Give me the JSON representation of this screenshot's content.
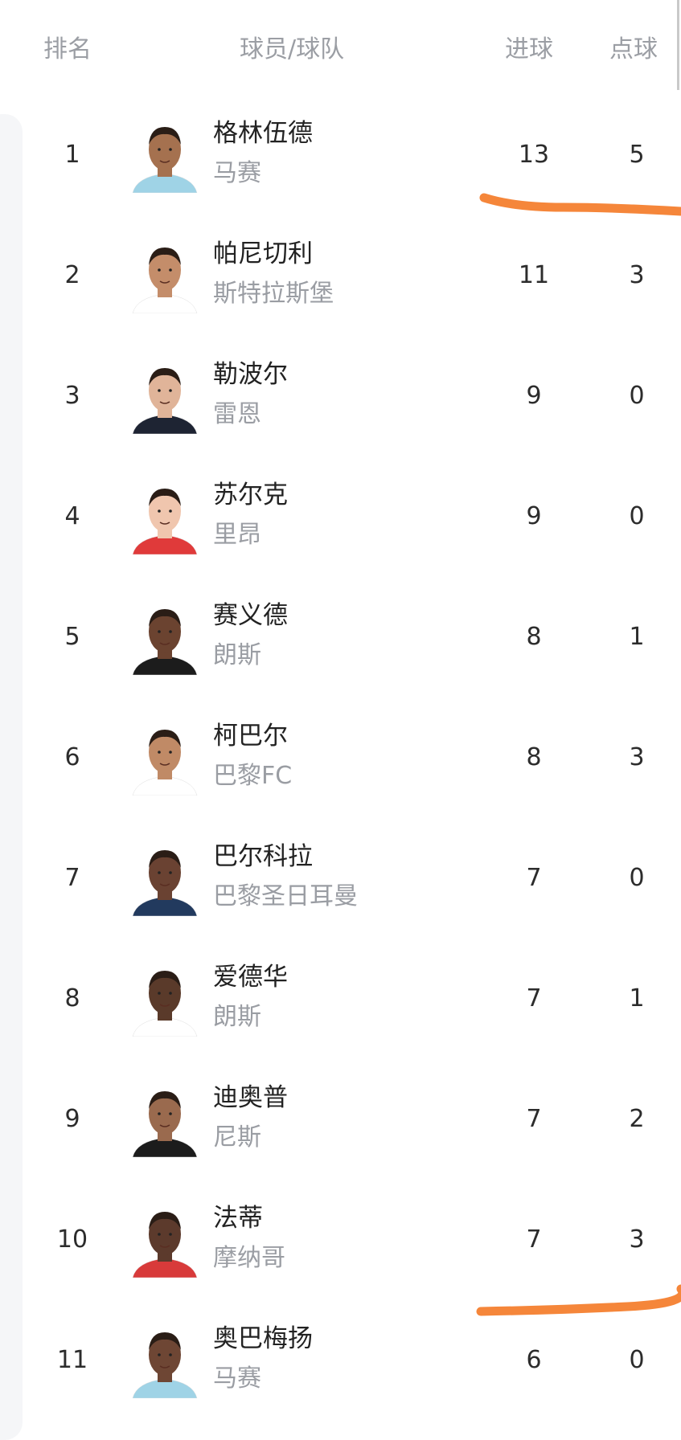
{
  "header": {
    "rank": "排名",
    "player_team": "球员/球队",
    "goals": "进球",
    "penalties": "点球"
  },
  "colors": {
    "annotation": "#f5863a",
    "muted_text": "#9a9da3"
  },
  "rows": [
    {
      "rank": "1",
      "name": "格林伍德",
      "team": "马赛",
      "goals": "13",
      "penalties": "5",
      "skin": "#a5714f",
      "shirt": "#9fd3e6"
    },
    {
      "rank": "2",
      "name": "帕尼切利",
      "team": "斯特拉斯堡",
      "goals": "11",
      "penalties": "3",
      "skin": "#c48d6a",
      "shirt": "#ffffff"
    },
    {
      "rank": "3",
      "name": "勒波尔",
      "team": "雷恩",
      "goals": "9",
      "penalties": "0",
      "skin": "#e0b499",
      "shirt": "#1e2433"
    },
    {
      "rank": "4",
      "name": "苏尔克",
      "team": "里昂",
      "goals": "9",
      "penalties": "0",
      "skin": "#f0c6ae",
      "shirt": "#e03a3a"
    },
    {
      "rank": "5",
      "name": "赛义德",
      "team": "朗斯",
      "goals": "8",
      "penalties": "1",
      "skin": "#6b4330",
      "shirt": "#1c1c1c"
    },
    {
      "rank": "6",
      "name": "柯巴尔",
      "team": "巴黎FC",
      "goals": "8",
      "penalties": "3",
      "skin": "#c08a66",
      "shirt": "#ffffff"
    },
    {
      "rank": "7",
      "name": "巴尔科拉",
      "team": "巴黎圣日耳曼",
      "goals": "7",
      "penalties": "0",
      "skin": "#6a4232",
      "shirt": "#223a5e"
    },
    {
      "rank": "8",
      "name": "爱德华",
      "team": "朗斯",
      "goals": "7",
      "penalties": "1",
      "skin": "#5a3a2a",
      "shirt": "#ffffff"
    },
    {
      "rank": "9",
      "name": "迪奥普",
      "team": "尼斯",
      "goals": "7",
      "penalties": "2",
      "skin": "#9a6a4e",
      "shirt": "#1c1c1c"
    },
    {
      "rank": "10",
      "name": "法蒂",
      "team": "摩纳哥",
      "goals": "7",
      "penalties": "3",
      "skin": "#5c3a2c",
      "shirt": "#d83a3a"
    },
    {
      "rank": "11",
      "name": "奥巴梅扬",
      "team": "马赛",
      "goals": "6",
      "penalties": "0",
      "skin": "#6e4634",
      "shirt": "#9fd3e6"
    }
  ]
}
